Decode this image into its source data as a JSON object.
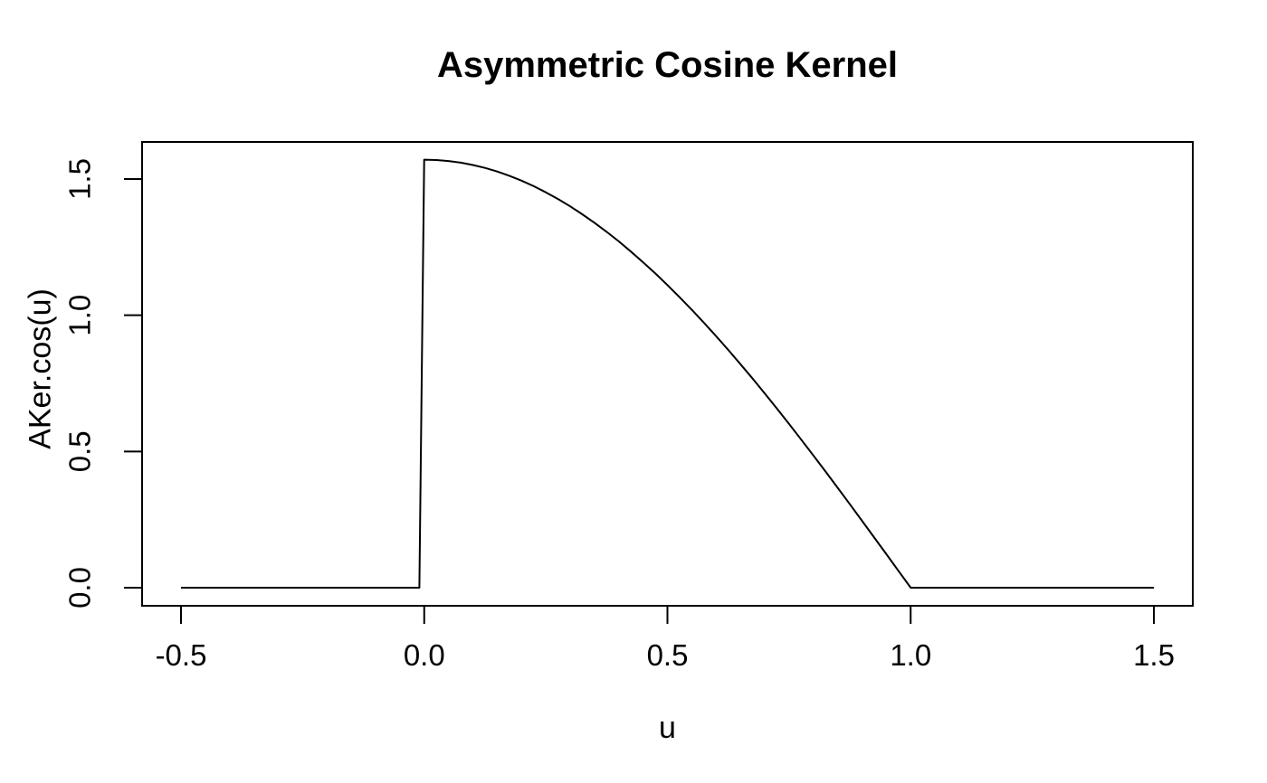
{
  "figure": {
    "title": "Asymmetric Cosine Kernel",
    "xlabel": "u",
    "ylabel": "AKer.cos(u)",
    "background_color": "#ffffff",
    "foreground_color": "#000000"
  },
  "chart_data": {
    "type": "line",
    "title": "Asymmetric Cosine Kernel",
    "xlabel": "u",
    "ylabel": "AKer.cos(u)",
    "grid": false,
    "legend": "none",
    "line_color": "#000000",
    "box_color": "#000000",
    "xlim": [
      -0.58,
      1.58
    ],
    "ylim": [
      -0.0664,
      1.636
    ],
    "xticks": [
      -0.5,
      0.0,
      0.5,
      1.0,
      1.5
    ],
    "yticks": [
      0.0,
      0.5,
      1.0,
      1.5
    ],
    "xtick_labels": [
      "-0.5",
      "0.0",
      "0.5",
      "1.0",
      "1.5"
    ],
    "ytick_labels": [
      "0.0",
      "0.5",
      "1.0",
      "1.5"
    ],
    "series": [
      {
        "name": "AKer.cos(u)",
        "x": [
          -0.5,
          -0.01,
          0,
          0.025,
          0.05,
          0.075,
          0.1,
          0.125,
          0.15,
          0.175,
          0.2,
          0.225,
          0.25,
          0.275,
          0.3,
          0.325,
          0.35,
          0.375,
          0.4,
          0.425,
          0.45,
          0.475,
          0.5,
          0.525,
          0.55,
          0.575,
          0.6,
          0.625,
          0.65,
          0.675,
          0.7,
          0.725,
          0.75,
          0.775,
          0.8,
          0.825,
          0.85,
          0.875,
          0.9,
          0.925,
          0.95,
          0.975,
          1.0,
          1.5
        ],
        "y": [
          0,
          0,
          1.5708,
          1.5696,
          1.566,
          1.5599,
          1.5514,
          1.5406,
          1.5274,
          1.5118,
          1.4939,
          1.4737,
          1.4512,
          1.4265,
          1.3996,
          1.3705,
          1.3393,
          1.3061,
          1.2708,
          1.2336,
          1.1944,
          1.1535,
          1.1107,
          1.0663,
          1.0201,
          0.9725,
          0.9233,
          0.8727,
          0.8207,
          0.7675,
          0.7131,
          0.6576,
          0.6011,
          0.5437,
          0.4854,
          0.4264,
          0.3667,
          0.3064,
          0.2457,
          0.1846,
          0.1232,
          0.0617,
          0,
          0
        ]
      }
    ]
  }
}
